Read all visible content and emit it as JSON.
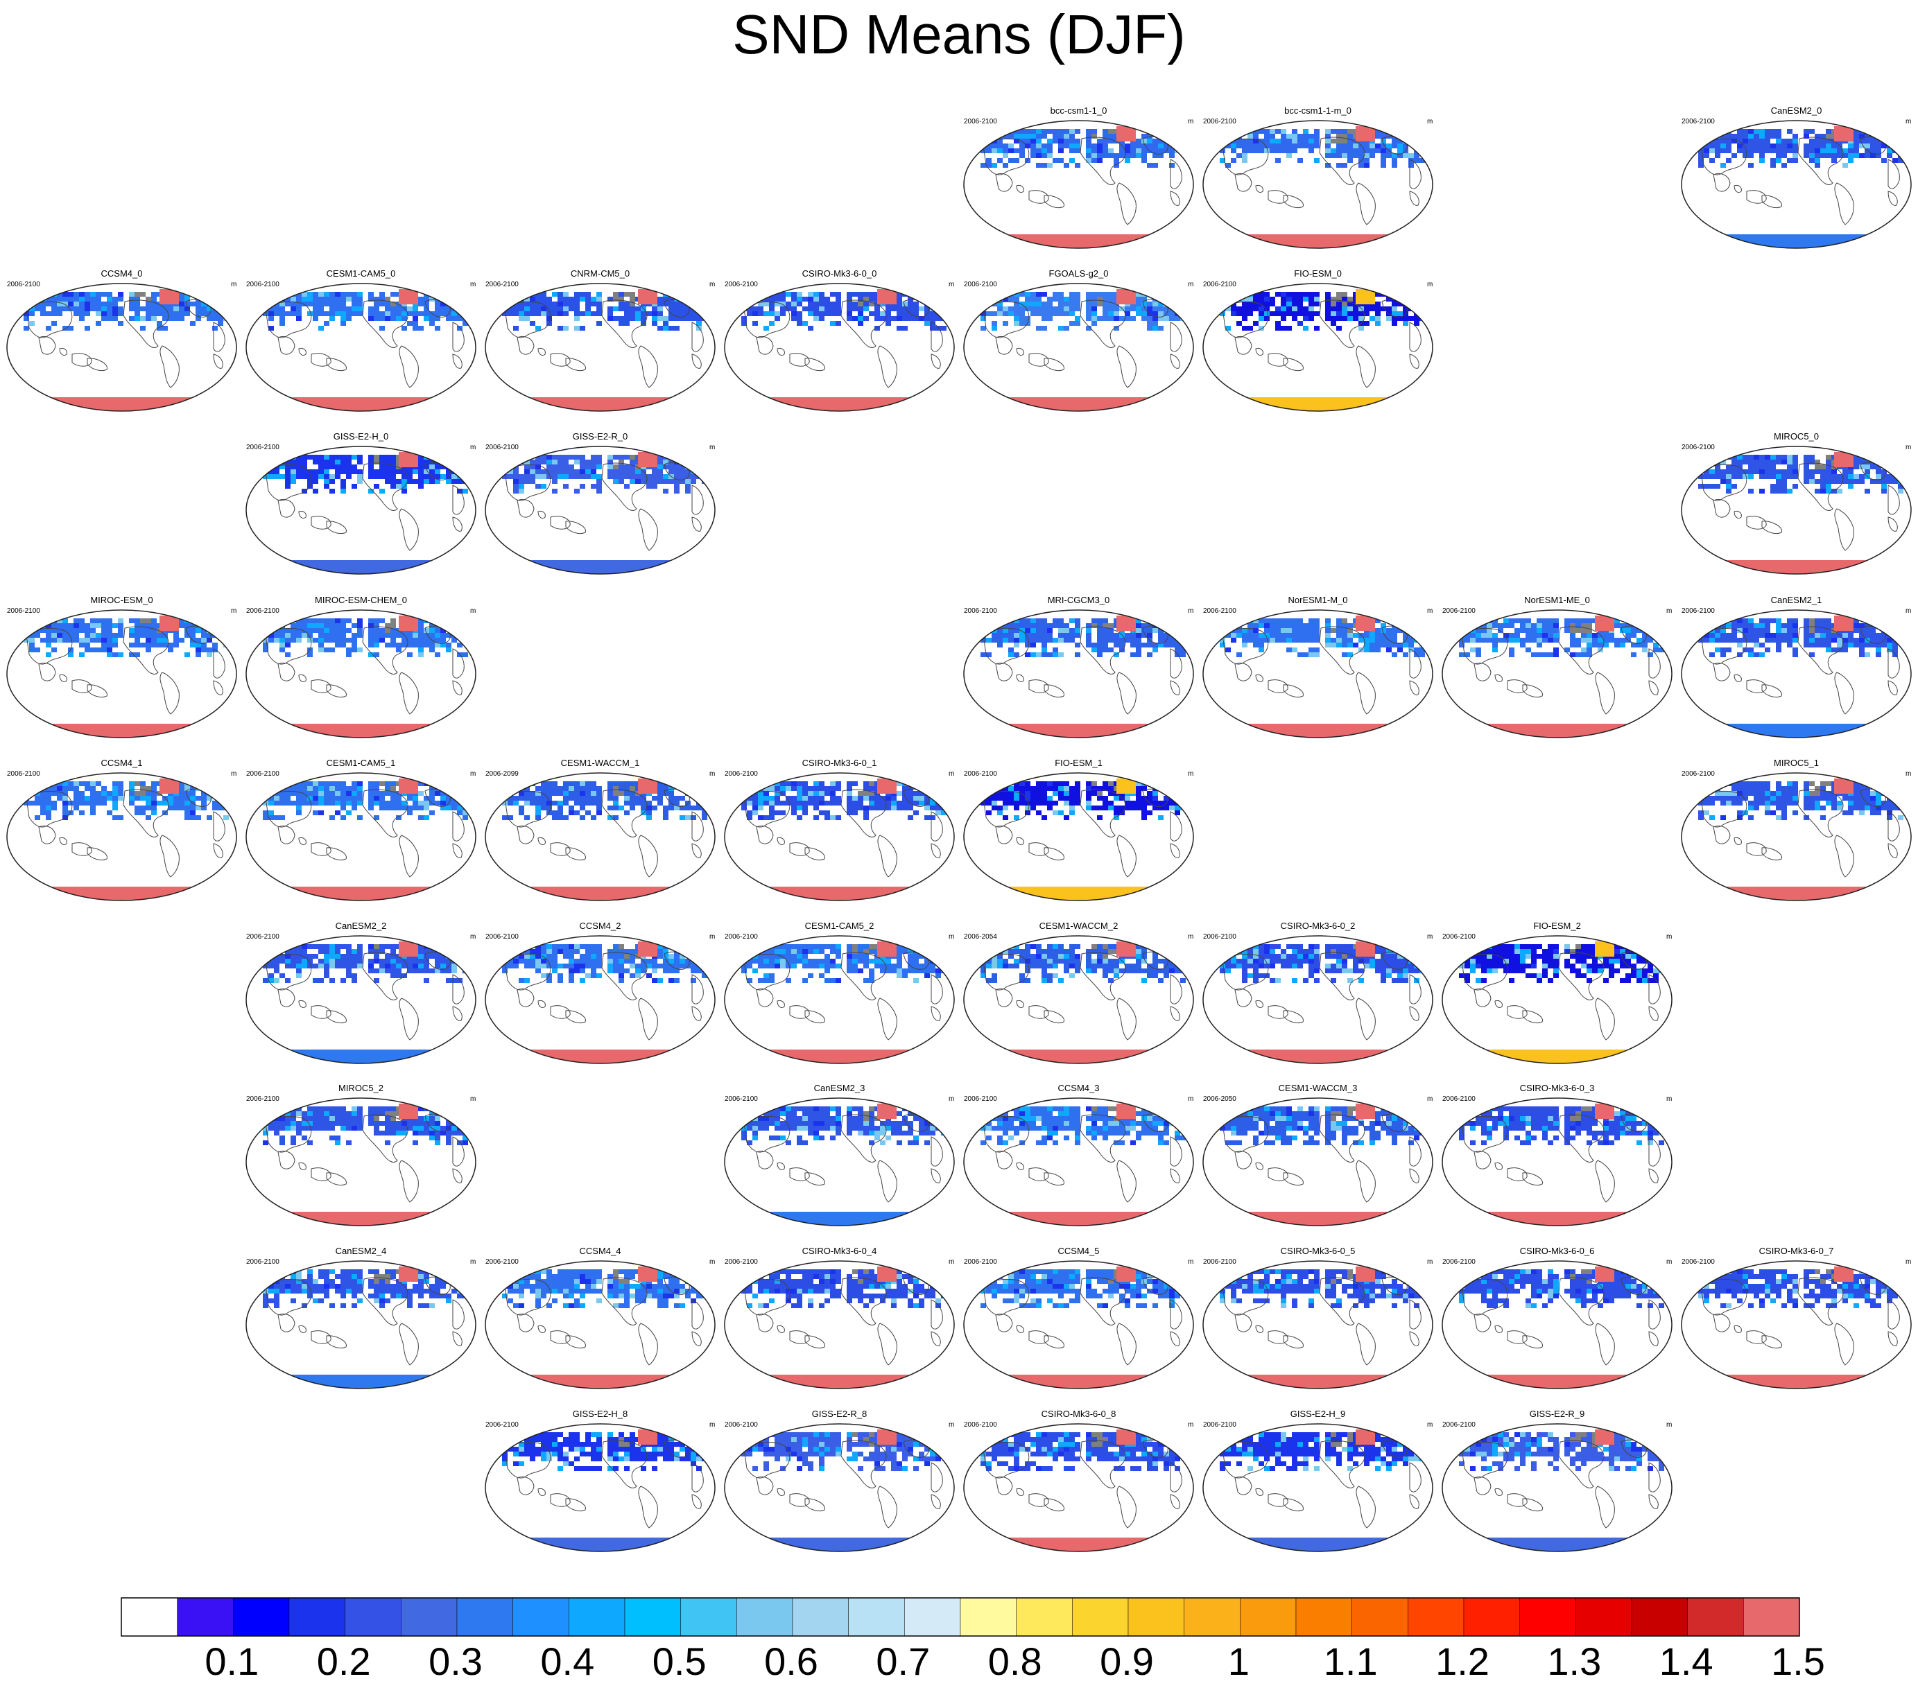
{
  "chart_data": {
    "type": "heatmap",
    "title": "SND Means (DJF)",
    "units": "m",
    "projection": "robinson-like global map (pacific-centred)",
    "colorbar": {
      "ticks": [
        "0.1",
        "0.2",
        "0.3",
        "0.4",
        "0.5",
        "0.6",
        "0.7",
        "0.8",
        "0.9",
        "1",
        "1.1",
        "1.2",
        "1.3",
        "1.4",
        "1.5"
      ],
      "colors": [
        "#ffffff",
        "#3a10f4",
        "#0000ff",
        "#1c33ee",
        "#3452e6",
        "#4169e1",
        "#2e79f0",
        "#1e90ff",
        "#0ea8ff",
        "#00bfff",
        "#40c4f4",
        "#7ac7ef",
        "#a3d5f0",
        "#b9e1f5",
        "#d4ebf7",
        "#fffa9e",
        "#fde95b",
        "#fbd52e",
        "#fbc21e",
        "#fbb11a",
        "#fa9a0d",
        "#fa7e00",
        "#fa6500",
        "#ff4500",
        "#ff2000",
        "#ff0000",
        "#e60000",
        "#c80000",
        "#d22a2a",
        "#e8696b"
      ]
    },
    "panels": [
      {
        "name": "bcc-csm1-1_0",
        "period": "2006-2100",
        "row": 0,
        "col": 4,
        "nh": "#3068ee",
        "sh": "#e8696b",
        "hot": "#e8696b"
      },
      {
        "name": "bcc-csm1-1-m_0",
        "period": "2006-2100",
        "row": 0,
        "col": 5,
        "nh": "#3068ee",
        "sh": "#e8696b",
        "hot": "#e8696b"
      },
      {
        "name": "CanESM2_0",
        "period": "2006-2100",
        "row": 0,
        "col": 7,
        "nh": "#2f55e6",
        "sh": "#2e79f0",
        "hot": "#e8696b"
      },
      {
        "name": "CCSM4_0",
        "period": "2006-2100",
        "row": 1,
        "col": 0,
        "nh": "#2f70f0",
        "sh": "#e8696b",
        "hot": "#e8696b"
      },
      {
        "name": "CESM1-CAM5_0",
        "period": "2006-2100",
        "row": 1,
        "col": 1,
        "nh": "#2f70f0",
        "sh": "#e8696b",
        "hot": "#e8696b"
      },
      {
        "name": "CNRM-CM5_0",
        "period": "2006-2100",
        "row": 1,
        "col": 2,
        "nh": "#2a52e6",
        "sh": "#e8696b",
        "hot": "#e8696b"
      },
      {
        "name": "CSIRO-Mk3-6-0_0",
        "period": "2006-2100",
        "row": 1,
        "col": 3,
        "nh": "#2c4ee6",
        "sh": "#e8696b",
        "hot": "#e8696b"
      },
      {
        "name": "FGOALS-g2_0",
        "period": "2006-2100",
        "row": 1,
        "col": 4,
        "nh": "#3a7af0",
        "sh": "#e8696b",
        "hot": "#e8696b"
      },
      {
        "name": "FIO-ESM_0",
        "period": "2006-2100",
        "row": 1,
        "col": 5,
        "nh": "#1010e0",
        "sh": "#fbc21e",
        "hot": "#fbc21e"
      },
      {
        "name": "GISS-E2-H_0",
        "period": "2006-2100",
        "row": 2,
        "col": 1,
        "nh": "#1c33ee",
        "sh": "#4169e1",
        "hot": "#e8696b"
      },
      {
        "name": "GISS-E2-R_0",
        "period": "2006-2100",
        "row": 2,
        "col": 2,
        "nh": "#3a5fe6",
        "sh": "#4169e1",
        "hot": "#e8696b"
      },
      {
        "name": "MIROC5_0",
        "period": "2006-2100",
        "row": 2,
        "col": 7,
        "nh": "#2f55e6",
        "sh": "#e8696b",
        "hot": "#e8696b"
      },
      {
        "name": "MIROC-ESM_0",
        "period": "2006-2100",
        "row": 3,
        "col": 0,
        "nh": "#2f70f0",
        "sh": "#e8696b",
        "hot": "#e8696b"
      },
      {
        "name": "MIROC-ESM-CHEM_0",
        "period": "2006-2100",
        "row": 3,
        "col": 1,
        "nh": "#2f70f0",
        "sh": "#e8696b",
        "hot": "#e8696b"
      },
      {
        "name": "MRI-CGCM3_0",
        "period": "2006-2100",
        "row": 3,
        "col": 4,
        "nh": "#2f62ea",
        "sh": "#e8696b",
        "hot": "#e8696b"
      },
      {
        "name": "NorESM1-M_0",
        "period": "2006-2100",
        "row": 3,
        "col": 5,
        "nh": "#2f70f0",
        "sh": "#e8696b",
        "hot": "#e8696b"
      },
      {
        "name": "NorESM1-ME_0",
        "period": "2006-2100",
        "row": 3,
        "col": 6,
        "nh": "#2f70f0",
        "sh": "#e8696b",
        "hot": "#e8696b"
      },
      {
        "name": "CanESM2_1",
        "period": "2006-2100",
        "row": 3,
        "col": 7,
        "nh": "#2f55e6",
        "sh": "#2e79f0",
        "hot": "#e8696b"
      },
      {
        "name": "CCSM4_1",
        "period": "2006-2100",
        "row": 4,
        "col": 0,
        "nh": "#2f70f0",
        "sh": "#e8696b",
        "hot": "#e8696b"
      },
      {
        "name": "CESM1-CAM5_1",
        "period": "2006-2100",
        "row": 4,
        "col": 1,
        "nh": "#2f70f0",
        "sh": "#e8696b",
        "hot": "#e8696b"
      },
      {
        "name": "CESM1-WACCM_1",
        "period": "2006-2099",
        "row": 4,
        "col": 2,
        "nh": "#2c5ee8",
        "sh": "#e8696b",
        "hot": "#e8696b"
      },
      {
        "name": "CSIRO-Mk3-6-0_1",
        "period": "2006-2100",
        "row": 4,
        "col": 3,
        "nh": "#2c4ee6",
        "sh": "#e8696b",
        "hot": "#e8696b"
      },
      {
        "name": "FIO-ESM_1",
        "period": "2006-2100",
        "row": 4,
        "col": 4,
        "nh": "#1010e0",
        "sh": "#fbc21e",
        "hot": "#fbc21e"
      },
      {
        "name": "MIROC5_1",
        "period": "2006-2100",
        "row": 4,
        "col": 7,
        "nh": "#2f55e6",
        "sh": "#e8696b",
        "hot": "#e8696b"
      },
      {
        "name": "CanESM2_2",
        "period": "2006-2100",
        "row": 5,
        "col": 1,
        "nh": "#2f55e6",
        "sh": "#2e79f0",
        "hot": "#e8696b"
      },
      {
        "name": "CCSM4_2",
        "period": "2006-2100",
        "row": 5,
        "col": 2,
        "nh": "#2f70f0",
        "sh": "#e8696b",
        "hot": "#e8696b"
      },
      {
        "name": "CESM1-CAM5_2",
        "period": "2006-2100",
        "row": 5,
        "col": 3,
        "nh": "#2f70f0",
        "sh": "#e8696b",
        "hot": "#e8696b"
      },
      {
        "name": "CESM1-WACCM_2",
        "period": "2006-2054",
        "row": 5,
        "col": 4,
        "nh": "#2c5ee8",
        "sh": "#e8696b",
        "hot": "#e8696b"
      },
      {
        "name": "CSIRO-Mk3-6-0_2",
        "period": "2006-2100",
        "row": 5,
        "col": 5,
        "nh": "#2c4ee6",
        "sh": "#e8696b",
        "hot": "#e8696b"
      },
      {
        "name": "FIO-ESM_2",
        "period": "2006-2100",
        "row": 5,
        "col": 6,
        "nh": "#1010e0",
        "sh": "#fbc21e",
        "hot": "#fbc21e"
      },
      {
        "name": "MIROC5_2",
        "period": "2006-2100",
        "row": 6,
        "col": 1,
        "nh": "#2f55e6",
        "sh": "#e8696b",
        "hot": "#e8696b"
      },
      {
        "name": "CanESM2_3",
        "period": "2006-2100",
        "row": 6,
        "col": 3,
        "nh": "#2f55e6",
        "sh": "#2e79f0",
        "hot": "#e8696b"
      },
      {
        "name": "CCSM4_3",
        "period": "2006-2100",
        "row": 6,
        "col": 4,
        "nh": "#2f70f0",
        "sh": "#e8696b",
        "hot": "#e8696b"
      },
      {
        "name": "CESM1-WACCM_3",
        "period": "2006-2050",
        "row": 6,
        "col": 5,
        "nh": "#2c5ee8",
        "sh": "#e8696b",
        "hot": "#e8696b"
      },
      {
        "name": "CSIRO-Mk3-6-0_3",
        "period": "2006-2100",
        "row": 6,
        "col": 6,
        "nh": "#2c4ee6",
        "sh": "#e8696b",
        "hot": "#e8696b"
      },
      {
        "name": "CanESM2_4",
        "period": "2006-2100",
        "row": 7,
        "col": 1,
        "nh": "#2f55e6",
        "sh": "#2e79f0",
        "hot": "#e8696b"
      },
      {
        "name": "CCSM4_4",
        "period": "2006-2100",
        "row": 7,
        "col": 2,
        "nh": "#2f70f0",
        "sh": "#e8696b",
        "hot": "#e8696b"
      },
      {
        "name": "CSIRO-Mk3-6-0_4",
        "period": "2006-2100",
        "row": 7,
        "col": 3,
        "nh": "#2c4ee6",
        "sh": "#e8696b",
        "hot": "#e8696b"
      },
      {
        "name": "CCSM4_5",
        "period": "2006-2100",
        "row": 7,
        "col": 4,
        "nh": "#2f70f0",
        "sh": "#e8696b",
        "hot": "#e8696b"
      },
      {
        "name": "CSIRO-Mk3-6-0_5",
        "period": "2006-2100",
        "row": 7,
        "col": 5,
        "nh": "#2c4ee6",
        "sh": "#e8696b",
        "hot": "#e8696b"
      },
      {
        "name": "CSIRO-Mk3-6-0_6",
        "period": "2006-2100",
        "row": 7,
        "col": 6,
        "nh": "#2c4ee6",
        "sh": "#e8696b",
        "hot": "#e8696b"
      },
      {
        "name": "CSIRO-Mk3-6-0_7",
        "period": "2006-2100",
        "row": 7,
        "col": 7,
        "nh": "#2c4ee6",
        "sh": "#e8696b",
        "hot": "#e8696b"
      },
      {
        "name": "GISS-E2-H_8",
        "period": "2006-2100",
        "row": 8,
        "col": 2,
        "nh": "#1c33ee",
        "sh": "#4169e1",
        "hot": "#e8696b"
      },
      {
        "name": "GISS-E2-R_8",
        "period": "2006-2100",
        "row": 8,
        "col": 3,
        "nh": "#3a5fe6",
        "sh": "#4169e1",
        "hot": "#e8696b"
      },
      {
        "name": "CSIRO-Mk3-6-0_8",
        "period": "2006-2100",
        "row": 8,
        "col": 4,
        "nh": "#2c4ee6",
        "sh": "#e8696b",
        "hot": "#e8696b"
      },
      {
        "name": "GISS-E2-H_9",
        "period": "2006-2100",
        "row": 8,
        "col": 5,
        "nh": "#1c33ee",
        "sh": "#4169e1",
        "hot": "#e8696b"
      },
      {
        "name": "GISS-E2-R_9",
        "period": "2006-2100",
        "row": 8,
        "col": 6,
        "nh": "#3a5fe6",
        "sh": "#4169e1",
        "hot": "#e8696b"
      }
    ]
  }
}
